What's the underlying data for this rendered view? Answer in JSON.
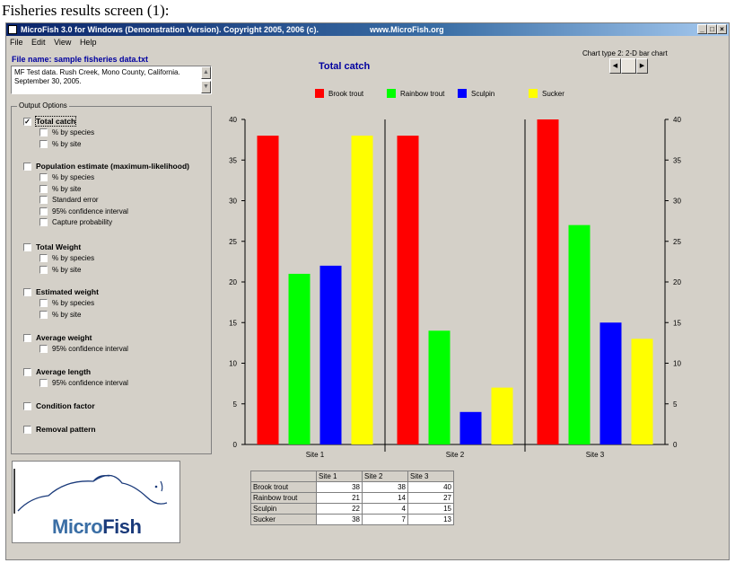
{
  "caption": "Fisheries results screen (1):",
  "window": {
    "title": "MicroFish 3.0 for Windows (Demonstration Version).  Copyright 2005, 2006 (c).",
    "url": "www.MicroFish.org"
  },
  "menu": [
    "File",
    "Edit",
    "View",
    "Help"
  ],
  "file_name_label": "File name:  sample fisheries data.txt",
  "notes_text": "MF Test data. Rush Creek, Mono County, California. September 30, 2005.",
  "output_options": {
    "title": "Output Options",
    "groups": [
      {
        "label": "Total catch",
        "checked": true,
        "subs": [
          "% by species",
          "% by site"
        ]
      },
      {
        "label": "Population estimate (maximum-likelihood)",
        "checked": false,
        "subs": [
          "% by species",
          "% by site",
          "Standard error",
          "95% confidence interval",
          "Capture probability"
        ]
      },
      {
        "label": "Total Weight",
        "checked": false,
        "subs": [
          "% by species",
          "% by site"
        ]
      },
      {
        "label": "Estimated weight",
        "checked": false,
        "subs": [
          "% by species",
          "% by site"
        ]
      },
      {
        "label": "Average weight",
        "checked": false,
        "subs": [
          "95% confidence interval"
        ]
      },
      {
        "label": "Average length",
        "checked": false,
        "subs": [
          "95% confidence interval"
        ]
      },
      {
        "label": "Condition factor",
        "checked": false,
        "subs": []
      },
      {
        "label": "Removal pattern",
        "checked": false,
        "subs": []
      }
    ]
  },
  "logo_text": {
    "micro": "Micro",
    "fish": "Fish"
  },
  "chart_type_label": "Chart type 2:  2-D bar chart",
  "colors": {
    "accent_blue": "#0000a0"
  },
  "chart_data": {
    "type": "bar",
    "title": "Total catch",
    "categories": [
      "Site 1",
      "Site 2",
      "Site 3"
    ],
    "series": [
      {
        "name": "Brook trout",
        "color": "#ff0000",
        "values": [
          38,
          38,
          40
        ]
      },
      {
        "name": "Rainbow trout",
        "color": "#00ff00",
        "values": [
          21,
          14,
          27
        ]
      },
      {
        "name": "Sculpin",
        "color": "#0000ff",
        "values": [
          22,
          4,
          15
        ]
      },
      {
        "name": "Sucker",
        "color": "#ffff00",
        "values": [
          38,
          7,
          13
        ]
      }
    ],
    "ylim": [
      0,
      40
    ],
    "yticks": [
      0,
      5,
      10,
      15,
      20,
      25,
      30,
      35,
      40
    ],
    "grid": false,
    "legend": "top"
  }
}
